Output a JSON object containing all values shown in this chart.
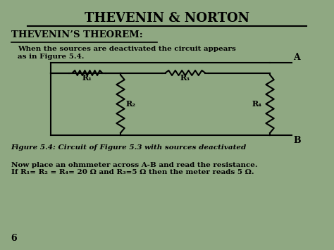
{
  "title": "THEVENIN & NORTON",
  "subtitle": "THEVENIN’S THEOREM:",
  "bg_color": "#8fa882",
  "text_color": "#000000",
  "body_text1": "When the sources are deactivated the circuit appears\nas in Figure 5.4.",
  "figure_caption": "Figure 5.4: Circuit of Figure 5.3 with sources deactivated",
  "body_text2": "Now place an ohmmeter across A-B and read the resistance.\nIf R₁= R₂ = R₄= 20 Ω and R₃=5 Ω then the meter reads 5 Ω.",
  "page_num": "6"
}
